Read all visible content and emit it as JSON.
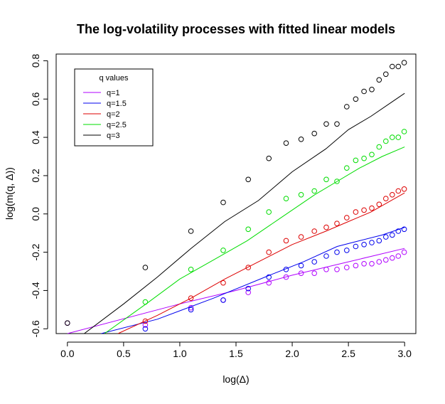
{
  "chart_data": {
    "type": "scatter",
    "title": "The log-volatility processes with fitted linear models",
    "xlabel": "log(Δ)",
    "ylabel": "log(m(q, Δ))",
    "xlim": [
      -0.1,
      3.1
    ],
    "ylim": [
      -0.625,
      0.835
    ],
    "x_ticks": [
      0.0,
      0.5,
      1.0,
      1.5,
      2.0,
      2.5,
      3.0
    ],
    "x_tick_labels": [
      "0.0",
      "0.5",
      "1.0",
      "1.5",
      "2.0",
      "2.5",
      "3.0"
    ],
    "y_ticks": [
      -0.6,
      -0.4,
      -0.2,
      0.0,
      0.2,
      0.4,
      0.6,
      0.8
    ],
    "y_tick_labels": [
      "-0.6",
      "-0.4",
      "-0.2",
      "0.0",
      "0.2",
      "0.4",
      "0.6",
      "0.8"
    ],
    "grid": false,
    "legend": {
      "title": "q values",
      "placement": "top-left",
      "entries": [
        "q=1",
        "q=1.5",
        "q=2",
        "q=2.5",
        "q=3"
      ]
    },
    "series": [
      {
        "name": "q=1",
        "color": "#b000ff",
        "points": {
          "x": [
            0.0,
            0.693,
            1.099,
            1.386,
            1.609,
            1.792,
            1.946,
            2.079,
            2.197,
            2.303,
            2.398,
            2.485,
            2.565,
            2.639,
            2.708,
            2.773,
            2.833,
            2.89,
            2.944,
            2.996
          ],
          "y": [
            -0.57,
            -0.58,
            -0.49,
            -0.45,
            -0.41,
            -0.36,
            -0.33,
            -0.31,
            -0.31,
            -0.29,
            -0.29,
            -0.28,
            -0.27,
            -0.26,
            -0.26,
            -0.25,
            -0.24,
            -0.23,
            -0.22,
            -0.2
          ]
        },
        "line": {
          "x": [
            0.0,
            1.0,
            1.5,
            2.0,
            2.5,
            3.0
          ],
          "y": [
            -0.625,
            -0.47,
            -0.4,
            -0.32,
            -0.25,
            -0.18
          ]
        }
      },
      {
        "name": "q=1.5",
        "color": "#0000ee",
        "points": {
          "x": [
            0.693,
            1.099,
            1.386,
            1.609,
            1.792,
            1.946,
            2.079,
            2.197,
            2.303,
            2.398,
            2.485,
            2.565,
            2.639,
            2.708,
            2.773,
            2.833,
            2.89,
            2.944,
            2.996
          ],
          "y": [
            -0.6,
            -0.5,
            -0.45,
            -0.39,
            -0.33,
            -0.29,
            -0.27,
            -0.25,
            -0.22,
            -0.2,
            -0.19,
            -0.17,
            -0.16,
            -0.15,
            -0.14,
            -0.12,
            -0.11,
            -0.09,
            -0.08
          ]
        },
        "line": {
          "x": [
            0.3,
            0.8,
            1.3,
            1.8,
            2.1,
            2.4,
            2.6,
            2.8,
            3.0
          ],
          "y": [
            -0.625,
            -0.55,
            -0.44,
            -0.32,
            -0.25,
            -0.17,
            -0.14,
            -0.11,
            -0.07
          ]
        }
      },
      {
        "name": "q=2",
        "color": "#dd0000",
        "points": {
          "x": [
            0.693,
            1.099,
            1.386,
            1.609,
            1.792,
            1.946,
            2.079,
            2.197,
            2.303,
            2.398,
            2.485,
            2.565,
            2.639,
            2.708,
            2.773,
            2.833,
            2.89,
            2.944,
            2.996
          ],
          "y": [
            -0.56,
            -0.44,
            -0.36,
            -0.28,
            -0.2,
            -0.14,
            -0.12,
            -0.09,
            -0.07,
            -0.05,
            -0.02,
            0.01,
            0.02,
            0.03,
            0.05,
            0.08,
            0.1,
            0.12,
            0.13
          ]
        },
        "line": {
          "x": [
            0.45,
            0.8,
            1.1,
            1.4,
            1.7,
            2.0,
            2.3,
            2.5,
            2.7,
            3.0
          ],
          "y": [
            -0.625,
            -0.53,
            -0.44,
            -0.34,
            -0.25,
            -0.16,
            -0.09,
            -0.04,
            0.01,
            0.11
          ]
        }
      },
      {
        "name": "q=2.5",
        "color": "#00dd00",
        "points": {
          "x": [
            0.693,
            1.099,
            1.386,
            1.609,
            1.792,
            1.946,
            2.079,
            2.197,
            2.303,
            2.398,
            2.485,
            2.565,
            2.639,
            2.708,
            2.773,
            2.833,
            2.89,
            2.944,
            2.996
          ],
          "y": [
            -0.46,
            -0.29,
            -0.19,
            -0.08,
            0.01,
            0.08,
            0.1,
            0.12,
            0.18,
            0.17,
            0.24,
            0.28,
            0.29,
            0.31,
            0.35,
            0.38,
            0.4,
            0.4,
            0.43
          ]
        },
        "line": {
          "x": [
            0.33,
            0.7,
            1.0,
            1.3,
            1.6,
            1.9,
            2.2,
            2.4,
            2.6,
            2.8,
            3.0
          ],
          "y": [
            -0.625,
            -0.47,
            -0.34,
            -0.24,
            -0.14,
            -0.02,
            0.1,
            0.17,
            0.24,
            0.3,
            0.35
          ]
        }
      },
      {
        "name": "q=3",
        "color": "#000000",
        "points": {
          "x": [
            0.0,
            0.693,
            1.099,
            1.386,
            1.609,
            1.792,
            1.946,
            2.079,
            2.197,
            2.303,
            2.398,
            2.485,
            2.565,
            2.639,
            2.708,
            2.773,
            2.833,
            2.89,
            2.944,
            2.996
          ],
          "y": [
            -0.57,
            -0.28,
            -0.09,
            0.06,
            0.18,
            0.29,
            0.37,
            0.39,
            0.42,
            0.47,
            0.47,
            0.56,
            0.6,
            0.64,
            0.65,
            0.7,
            0.73,
            0.77,
            0.77,
            0.79
          ]
        },
        "line": {
          "x": [
            0.15,
            0.5,
            0.8,
            1.1,
            1.4,
            1.7,
            2.0,
            2.3,
            2.5,
            2.7,
            2.9,
            3.0
          ],
          "y": [
            -0.625,
            -0.47,
            -0.33,
            -0.18,
            -0.04,
            0.07,
            0.22,
            0.34,
            0.44,
            0.51,
            0.59,
            0.63
          ]
        }
      }
    ]
  }
}
